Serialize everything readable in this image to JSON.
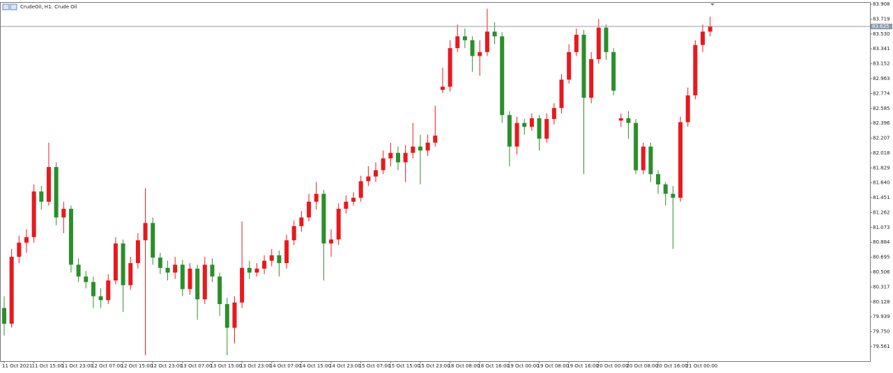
{
  "chart_data": {
    "type": "candlestick",
    "title": "CrudeOil, H1:  Crude Oil",
    "up_color": "#e8191e",
    "down_color": "#2b8f2b",
    "grid": false,
    "last_price": 83.625,
    "ylim": [
      79.375,
      83.926
    ],
    "yticks": [
      79.561,
      {
        "value": 79.75,
        "label": "79.750"
      },
      79.939,
      80.128,
      80.317,
      80.506,
      80.695,
      80.884,
      81.073,
      81.262,
      81.451,
      {
        "value": 81.64,
        "label": "81.640"
      },
      81.829,
      82.018,
      82.207,
      82.396,
      82.585,
      82.774,
      82.963,
      83.152,
      83.341,
      {
        "value": 83.53,
        "label": "83.530"
      },
      83.719,
      83.908
    ],
    "categories": [
      "11 Oct 2021",
      null,
      null,
      null,
      "11 Oct 15:00",
      null,
      null,
      null,
      "11 Oct 23:00",
      null,
      null,
      null,
      "12 Oct 07:00",
      null,
      null,
      null,
      "12 Oct 15:00",
      null,
      null,
      null,
      "12 Oct 23:00",
      null,
      null,
      null,
      "13 Oct 07:00",
      null,
      null,
      null,
      "13 Oct 15:00",
      null,
      null,
      null,
      "13 Oct 23:00",
      null,
      null,
      null,
      "14 Oct 07:00",
      null,
      null,
      null,
      "14 Oct 15:00",
      null,
      null,
      null,
      "14 Oct 23:00",
      null,
      null,
      null,
      "15 Oct 07:00",
      null,
      null,
      null,
      "15 Oct 15:00",
      null,
      null,
      null,
      "15 Oct 23:00",
      null,
      null,
      null,
      "18 Oct 08:00",
      null,
      null,
      null,
      "18 Oct 16:00",
      null,
      null,
      null,
      "19 Oct 00:00",
      null,
      null,
      null,
      "19 Oct 08:00",
      null,
      null,
      null,
      "19 Oct 16:00",
      null,
      null,
      null,
      "20 Oct 00:00",
      null,
      null,
      null,
      "20 Oct 08:00",
      null,
      null,
      null,
      "20 Oct 16:00",
      null,
      null,
      null,
      "21 Oct 00:00",
      null,
      null,
      null
    ],
    "open": [
      80.05,
      79.85,
      80.7,
      80.88,
      80.95,
      81.53,
      81.4,
      81.84,
      81.2,
      81.31,
      80.6,
      80.45,
      80.38,
      80.2,
      80.15,
      80.4,
      80.87,
      80.34,
      80.62,
      80.91,
      81.13,
      80.69,
      80.56,
      80.5,
      80.6,
      80.29,
      80.55,
      80.16,
      80.6,
      80.45,
      80.1,
      79.8,
      80.12,
      80.56,
      80.5,
      80.55,
      80.65,
      80.72,
      80.62,
      80.91,
      81.09,
      81.2,
      81.4,
      81.5,
      80.87,
      80.92,
      81.31,
      81.4,
      81.45,
      81.66,
      81.72,
      81.8,
      81.95,
      82.02,
      81.9,
      82.02,
      82.1,
      82.05,
      82.15,
      82.82,
      82.86,
      83.35,
      83.5,
      83.45,
      83.25,
      83.3,
      83.56,
      83.5,
      82.5,
      82.1,
      82.4,
      82.35,
      82.46,
      82.2,
      82.45,
      82.59,
      82.95,
      83.3,
      83.52,
      82.72,
      83.21,
      83.61,
      83.3,
      82.43,
      82.46,
      82.4,
      81.8,
      82.1,
      81.75,
      81.62,
      81.5,
      81.45,
      82.41,
      82.75,
      83.39,
      83.56
    ],
    "high": [
      80.2,
      80.8,
      80.97,
      81.05,
      81.62,
      81.6,
      82.15,
      81.9,
      81.4,
      81.35,
      80.68,
      80.52,
      80.45,
      80.3,
      80.48,
      80.95,
      80.92,
      80.7,
      81.0,
      81.57,
      81.2,
      80.75,
      80.65,
      80.7,
      80.66,
      80.62,
      80.6,
      80.7,
      80.68,
      80.5,
      80.18,
      80.2,
      81.15,
      80.65,
      80.62,
      80.72,
      80.8,
      80.78,
      80.98,
      81.16,
      81.28,
      81.5,
      81.65,
      81.55,
      81.05,
      81.38,
      81.48,
      81.52,
      81.73,
      81.85,
      81.9,
      82.05,
      82.15,
      82.1,
      82.12,
      82.4,
      82.25,
      82.25,
      82.62,
      83.1,
      83.45,
      83.65,
      83.6,
      83.5,
      83.45,
      83.85,
      83.68,
      83.55,
      82.55,
      82.48,
      82.45,
      82.52,
      82.5,
      82.52,
      82.65,
      83.02,
      83.4,
      83.6,
      83.58,
      83.3,
      83.72,
      83.65,
      83.35,
      82.52,
      82.55,
      82.45,
      82.15,
      82.15,
      81.8,
      81.65,
      81.6,
      82.48,
      82.85,
      83.45,
      83.65,
      83.75
    ],
    "low": [
      79.7,
      79.8,
      80.62,
      80.75,
      80.88,
      81.3,
      81.35,
      81.1,
      81.0,
      80.5,
      80.38,
      80.3,
      80.05,
      80.05,
      80.1,
      80.35,
      80.0,
      80.28,
      80.55,
      79.45,
      80.6,
      80.48,
      80.4,
      80.42,
      80.2,
      80.22,
      79.9,
      80.1,
      80.38,
      79.95,
      79.45,
      79.6,
      80.05,
      80.42,
      80.45,
      80.48,
      80.58,
      80.45,
      80.55,
      80.85,
      81.02,
      81.15,
      81.3,
      80.4,
      80.7,
      80.85,
      81.25,
      81.35,
      81.4,
      81.6,
      81.65,
      81.75,
      81.85,
      81.8,
      81.65,
      81.95,
      81.62,
      81.98,
      82.1,
      82.78,
      82.8,
      83.3,
      83.35,
      83.05,
      83.0,
      83.25,
      83.4,
      82.4,
      81.85,
      82.0,
      82.25,
      82.3,
      82.05,
      82.15,
      82.38,
      82.52,
      82.9,
      83.25,
      81.75,
      82.65,
      83.15,
      83.2,
      82.75,
      82.35,
      82.2,
      81.75,
      81.75,
      81.65,
      81.5,
      81.35,
      80.8,
      81.4,
      82.35,
      82.7,
      83.3,
      83.5
    ],
    "close": [
      79.85,
      80.7,
      80.88,
      80.95,
      81.53,
      81.4,
      81.84,
      81.2,
      81.31,
      80.6,
      80.45,
      80.38,
      80.2,
      80.15,
      80.4,
      80.87,
      80.34,
      80.62,
      80.91,
      81.13,
      80.69,
      80.56,
      80.5,
      80.6,
      80.29,
      80.55,
      80.16,
      80.6,
      80.45,
      80.1,
      79.8,
      80.12,
      80.56,
      80.5,
      80.55,
      80.65,
      80.72,
      80.62,
      80.91,
      81.09,
      81.2,
      81.4,
      81.5,
      80.87,
      80.92,
      81.31,
      81.4,
      81.45,
      81.66,
      81.72,
      81.8,
      81.95,
      82.02,
      81.9,
      82.02,
      82.1,
      82.05,
      82.15,
      82.24,
      82.86,
      83.35,
      83.5,
      83.45,
      83.25,
      83.3,
      83.56,
      83.5,
      82.5,
      82.1,
      82.4,
      82.35,
      82.46,
      82.2,
      82.45,
      82.59,
      82.95,
      83.3,
      83.52,
      82.72,
      83.21,
      83.61,
      83.3,
      82.81,
      82.46,
      82.4,
      81.8,
      82.1,
      81.75,
      81.62,
      81.5,
      81.45,
      82.41,
      82.75,
      83.39,
      83.56,
      83.625
    ]
  }
}
